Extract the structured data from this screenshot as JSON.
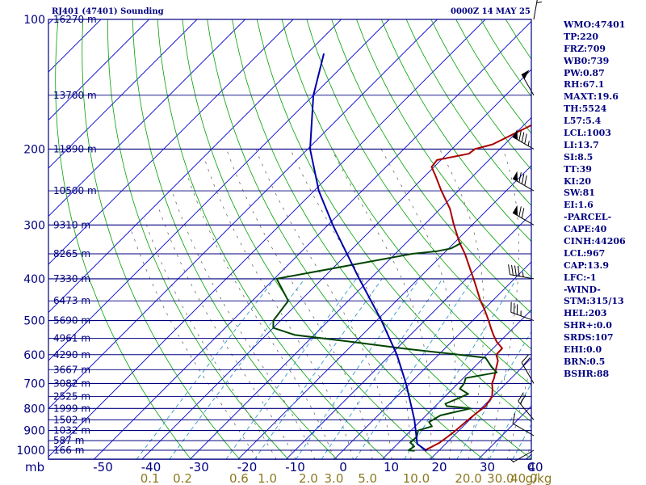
{
  "title_left": "RJ401 (47401) Sounding",
  "title_right": "0000Z 14 MAY 25",
  "colors": {
    "frame": "#00007f",
    "isobar": "#00007f",
    "isotherm": "#0000cc",
    "dry_adiabat": "#00a000",
    "moist_adiabat": "#555555",
    "mixing_ratio": "#3399cc",
    "temperature": "#aa0000",
    "dewpoint": "#004400",
    "parcel": "#0000aa",
    "mixing_label": "#8c7a22",
    "wind_barb": "#000000"
  },
  "chart_data": {
    "type": "line",
    "chart": "Skew-T log-P",
    "y_axis": {
      "pressure_levels": [
        100,
        200,
        300,
        400,
        500,
        600,
        700,
        800,
        900,
        1000
      ],
      "ylim_hpa": [
        100,
        1050
      ],
      "unit": "mb",
      "scale": "log"
    },
    "x_axis": {
      "temperature_ticks": [
        "-50",
        "-40",
        "-30",
        "-20",
        "-10",
        "0",
        "10",
        "20",
        "30",
        "40"
      ],
      "unit": "C"
    },
    "mixing_ratio_axis": {
      "ticks": [
        "0.1",
        "0.2",
        "0.6",
        "1.0",
        "2.0",
        "3.0",
        "5.0",
        "10.0",
        "20.0",
        "30.0",
        "40.0"
      ],
      "unit": "g/kg"
    },
    "height_labels": [
      {
        "p": 100,
        "label": "16270 m"
      },
      {
        "p": 150,
        "label": "13700 m"
      },
      {
        "p": 200,
        "label": "11890 m"
      },
      {
        "p": 250,
        "label": "10500 m"
      },
      {
        "p": 300,
        "label": "9310 m"
      },
      {
        "p": 350,
        "label": "8265 m"
      },
      {
        "p": 400,
        "label": "7330 m"
      },
      {
        "p": 450,
        "label": "6473 m"
      },
      {
        "p": 500,
        "label": "5690 m"
      },
      {
        "p": 550,
        "label": "4961 m"
      },
      {
        "p": 600,
        "label": "4290 m"
      },
      {
        "p": 650,
        "label": "3667 m"
      },
      {
        "p": 700,
        "label": "3082 m"
      },
      {
        "p": 750,
        "label": "2525 m"
      },
      {
        "p": 800,
        "label": "1999 m"
      },
      {
        "p": 850,
        "label": "1502 m"
      },
      {
        "p": 900,
        "label": "1032 m"
      },
      {
        "p": 950,
        "label": "587 m"
      },
      {
        "p": 1000,
        "label": "166 m"
      }
    ],
    "series": [
      {
        "id": "temperature",
        "points": [
          [
            1003,
            17.5
          ],
          [
            1000,
            17.0
          ],
          [
            980,
            17.8
          ],
          [
            960,
            18.5
          ],
          [
            925,
            19.0
          ],
          [
            900,
            19.3
          ],
          [
            850,
            19.7
          ],
          [
            820,
            20.0
          ],
          [
            790,
            20.5
          ],
          [
            750,
            19.8
          ],
          [
            720,
            18.3
          ],
          [
            700,
            17.1
          ],
          [
            680,
            16.4
          ],
          [
            650,
            15.0
          ],
          [
            620,
            13.6
          ],
          [
            600,
            12.0
          ],
          [
            580,
            11.9
          ],
          [
            560,
            9.4
          ],
          [
            540,
            7.3
          ],
          [
            520,
            5.3
          ],
          [
            500,
            3.3
          ],
          [
            470,
            0.0
          ],
          [
            450,
            -2.5
          ],
          [
            420,
            -6.0
          ],
          [
            400,
            -8.5
          ],
          [
            380,
            -11.2
          ],
          [
            350,
            -15.5
          ],
          [
            330,
            -18.9
          ],
          [
            300,
            -23.8
          ],
          [
            275,
            -28.0
          ],
          [
            250,
            -33.5
          ],
          [
            230,
            -38.0
          ],
          [
            220,
            -40.5
          ],
          [
            212,
            -40.8
          ],
          [
            205,
            -35.5
          ],
          [
            200,
            -35.2
          ],
          [
            195,
            -32.5
          ],
          [
            170,
            -27.0
          ],
          [
            150,
            -20.5
          ],
          [
            135,
            -17.0
          ],
          [
            120,
            -13.5
          ],
          [
            110,
            -10.3
          ],
          [
            104,
            -10.0
          ],
          [
            100,
            -9.8
          ]
        ]
      },
      {
        "id": "dewpoint",
        "points": [
          [
            1003,
            15.0
          ],
          [
            1000,
            13.6
          ],
          [
            980,
            14.0
          ],
          [
            960,
            12.4
          ],
          [
            930,
            12.5
          ],
          [
            900,
            11.5
          ],
          [
            880,
            13.5
          ],
          [
            860,
            12.0
          ],
          [
            830,
            13.0
          ],
          [
            800,
            17.8
          ],
          [
            790,
            12.4
          ],
          [
            780,
            11.6
          ],
          [
            760,
            13.0
          ],
          [
            740,
            14.3
          ],
          [
            720,
            11.5
          ],
          [
            700,
            11.3
          ],
          [
            680,
            10.5
          ],
          [
            660,
            15.8
          ],
          [
            640,
            13.5
          ],
          [
            610,
            10.4
          ],
          [
            600,
            4.2
          ],
          [
            580,
            -9.0
          ],
          [
            560,
            -21.0
          ],
          [
            540,
            -34.0
          ],
          [
            520,
            -40.0
          ],
          [
            500,
            -41.5
          ],
          [
            450,
            -42.5
          ],
          [
            400,
            -49.5
          ],
          [
            350,
            -26.5
          ],
          [
            345,
            -21.8
          ],
          [
            340,
            -19.5
          ],
          [
            330,
            -18.5
          ]
        ]
      },
      {
        "id": "parcel",
        "points": [
          [
            1003,
            17.5
          ],
          [
            967,
            14.1
          ],
          [
            900,
            11.0
          ],
          [
            850,
            8.5
          ],
          [
            800,
            5.6
          ],
          [
            700,
            -0.8
          ],
          [
            600,
            -8.7
          ],
          [
            500,
            -19.0
          ],
          [
            400,
            -32.3
          ],
          [
            300,
            -49.0
          ],
          [
            250,
            -59.0
          ],
          [
            200,
            -69.5
          ],
          [
            150,
            -80.0
          ],
          [
            120,
            -86.5
          ]
        ]
      }
    ],
    "wind_barbs": [
      {
        "p": 100,
        "dir": 10,
        "spd": 25
      },
      {
        "p": 150,
        "dir": 330,
        "spd": 50
      },
      {
        "p": 200,
        "dir": 300,
        "spd": 85
      },
      {
        "p": 250,
        "dir": 300,
        "spd": 80
      },
      {
        "p": 300,
        "dir": 300,
        "spd": 70
      },
      {
        "p": 400,
        "dir": 280,
        "spd": 45
      },
      {
        "p": 500,
        "dir": 290,
        "spd": 35
      },
      {
        "p": 700,
        "dir": 330,
        "spd": 20
      },
      {
        "p": 850,
        "dir": 320,
        "spd": 20
      },
      {
        "p": 925,
        "dir": 300,
        "spd": 10
      },
      {
        "p": 1000,
        "dir": 240,
        "spd": 5
      }
    ]
  },
  "indices": [
    "WMO:47401",
    "TP:220",
    "FRZ:709",
    "WB0:739",
    "PW:0.87",
    "RH:67.1",
    "MAXT:19.6",
    "TH:5524",
    "L57:5.4",
    "LCL:1003",
    "LI:13.7",
    "SI:8.5",
    "TT:39",
    "KI:20",
    "SW:81",
    "EI:1.6",
    "-PARCEL-",
    "CAPE:40",
    "CINH:44206",
    "LCL:967",
    "CAP:13.9",
    "LFC:-1",
    "-WIND-",
    "STM:315/13",
    "HEL:203",
    "SHR+:0.0",
    "SRDS:107",
    "EHI:0.0",
    "BRN:0.5",
    "BSHR:88"
  ]
}
